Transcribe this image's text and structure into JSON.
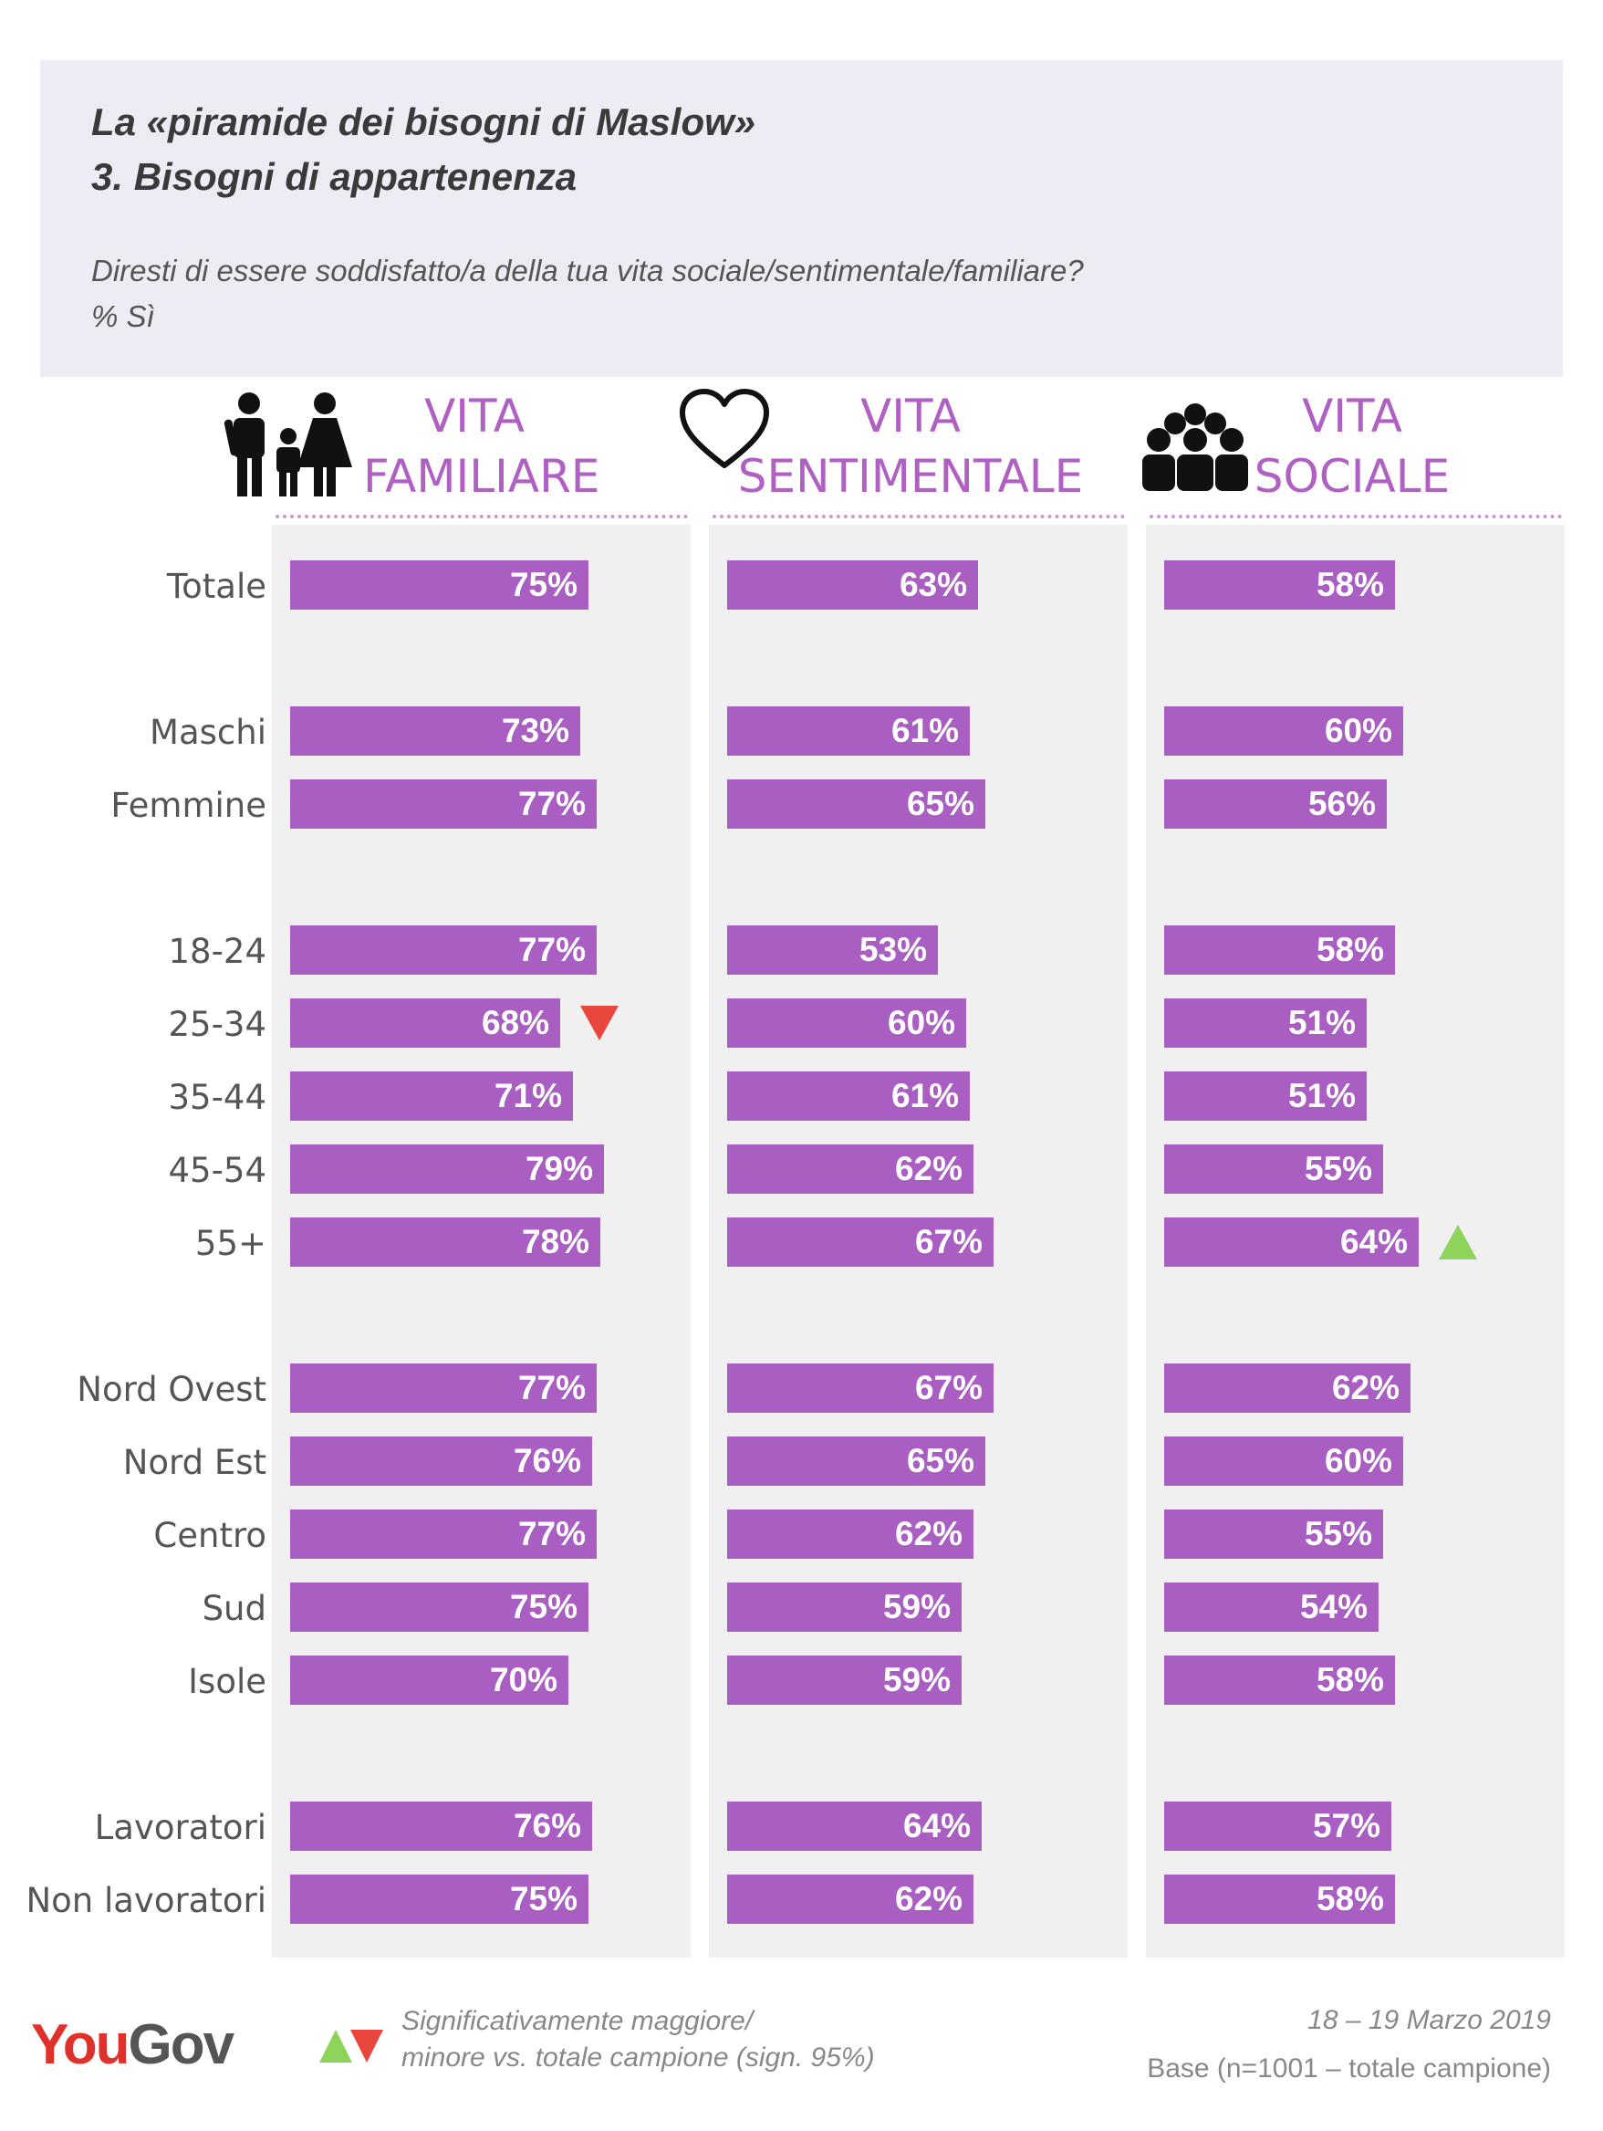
{
  "header": {
    "title_line1": "La «piramide dei bisogni di Maslow»",
    "title_line2": "3. Bisogni di appartenenza",
    "question": "Diresti di essere soddisfatto/a della tua vita sociale/sentimentale/familiare?",
    "measure": "% Sì"
  },
  "columns": [
    {
      "line1": "VITA",
      "line2": "FAMILIARE",
      "icon": "family-icon"
    },
    {
      "line1": "VITA",
      "line2": "SENTIMENTALE",
      "icon": "heart-icon"
    },
    {
      "line1": "VITA",
      "line2": "SOCIALE",
      "icon": "group-icon"
    }
  ],
  "chart_data": {
    "type": "bar",
    "orientation": "horizontal",
    "categories": [
      "Totale",
      "Maschi",
      "Femmine",
      "18-24",
      "25-34",
      "35-44",
      "45-54",
      "55+",
      "Nord Ovest",
      "Nord Est",
      "Centro",
      "Sud",
      "Isole",
      "Lavoratori",
      "Non lavoratori"
    ],
    "series": [
      {
        "name": "VITA FAMILIARE",
        "values": [
          75,
          73,
          77,
          77,
          68,
          71,
          79,
          78,
          77,
          76,
          77,
          75,
          70,
          76,
          75
        ]
      },
      {
        "name": "VITA SENTIMENTALE",
        "values": [
          63,
          61,
          65,
          53,
          60,
          61,
          62,
          67,
          67,
          65,
          62,
          59,
          59,
          64,
          62
        ]
      },
      {
        "name": "VITA SOCIALE",
        "values": [
          58,
          60,
          56,
          58,
          51,
          51,
          55,
          64,
          62,
          60,
          55,
          54,
          58,
          57,
          58
        ]
      }
    ],
    "value_suffix": "%",
    "significance": [
      {
        "series": 0,
        "category": "25-34",
        "direction": "down",
        "color": "#e9463e"
      },
      {
        "series": 2,
        "category": "55+",
        "direction": "up",
        "color": "#8ed45a"
      }
    ],
    "bar_color": "#a95fc1",
    "xlim": [
      0,
      100
    ]
  },
  "footer": {
    "brand_you": "You",
    "brand_gov": "Gov",
    "legend_line1": "Significativamente maggiore/",
    "legend_line2": "minore vs. totale campione (sign. 95%)",
    "date": "18 – 19 Marzo 2019",
    "base": "Base (n=1001 – totale campione)"
  }
}
